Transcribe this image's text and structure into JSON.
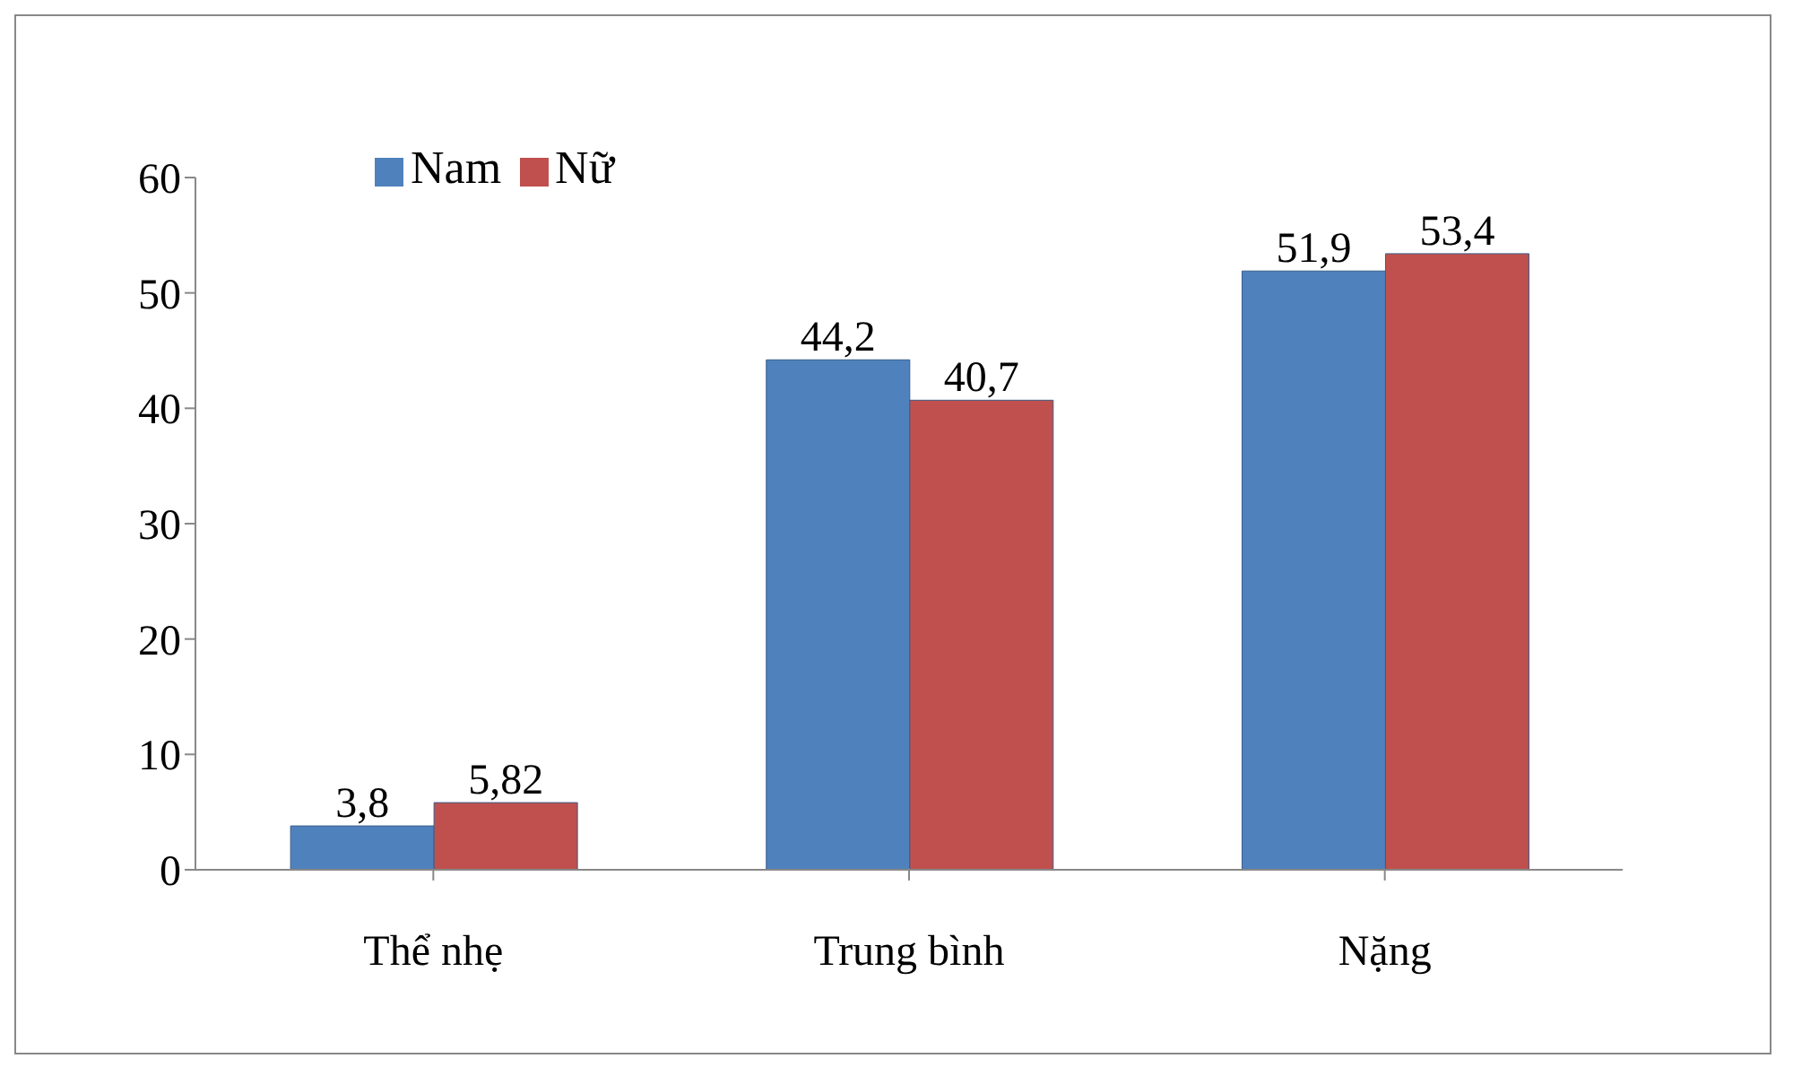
{
  "chart_data": {
    "type": "bar",
    "categories": [
      "Thể nhẹ",
      "Trung bình",
      "Nặng"
    ],
    "series": [
      {
        "name": "Nam",
        "color": "#4f81bd",
        "values": [
          3.8,
          44.2,
          51.9
        ],
        "value_labels": [
          "3,8",
          "44,2",
          "51,9"
        ]
      },
      {
        "name": "Nữ",
        "color": "#c0504d",
        "values": [
          5.82,
          40.7,
          53.4
        ],
        "value_labels": [
          "5,82",
          "40,7",
          "53,4"
        ]
      }
    ],
    "ylim": [
      0,
      60
    ],
    "yticks": [
      0,
      10,
      20,
      30,
      40,
      50,
      60
    ],
    "legend": "top left"
  }
}
